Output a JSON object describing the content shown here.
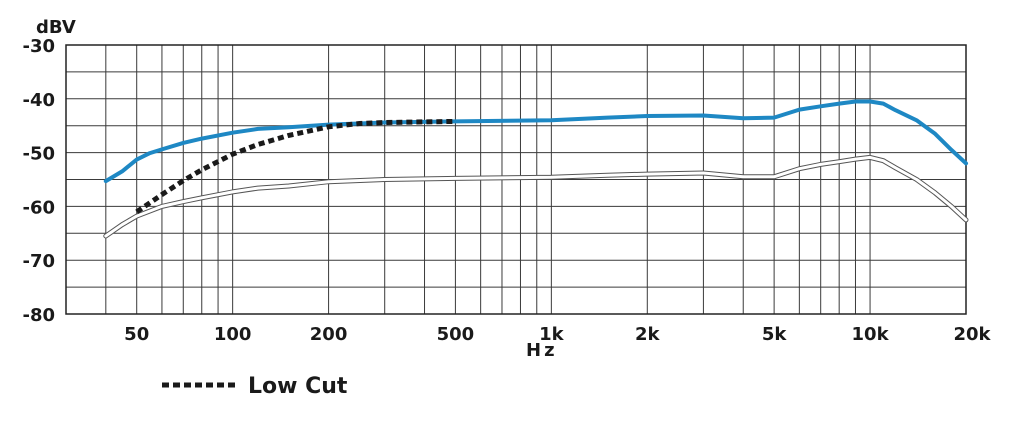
{
  "chart_data": {
    "type": "line",
    "xscale": "log",
    "xlim": [
      30,
      20000
    ],
    "ylim": [
      -80,
      -30
    ],
    "grid": true,
    "xlabel": "Hz",
    "ylabel": "dBV",
    "xticks": [
      {
        "value": 50,
        "label": "50"
      },
      {
        "value": 100,
        "label": "100"
      },
      {
        "value": 200,
        "label": "200"
      },
      {
        "value": 500,
        "label": "500"
      },
      {
        "value": 1000,
        "label": "1k"
      },
      {
        "value": 2000,
        "label": "2k"
      },
      {
        "value": 5000,
        "label": "5k"
      },
      {
        "value": 10000,
        "label": "10k"
      },
      {
        "value": 20000,
        "label": "20k"
      }
    ],
    "yticks": [
      {
        "value": -30,
        "label": "-30"
      },
      {
        "value": -40,
        "label": "-40"
      },
      {
        "value": -50,
        "label": "-50"
      },
      {
        "value": -60,
        "label": "-60"
      },
      {
        "value": -70,
        "label": "-70"
      },
      {
        "value": -80,
        "label": "-80"
      }
    ],
    "legend": {
      "placement": "bottom-left",
      "entries": [
        "Low Cut"
      ]
    },
    "series": [
      {
        "key": "main",
        "style": "solid",
        "color": "#1e88c4",
        "points": [
          [
            40,
            -55.3
          ],
          [
            45,
            -53.5
          ],
          [
            50,
            -51.3
          ],
          [
            55,
            -50.1
          ],
          [
            60,
            -49.4
          ],
          [
            70,
            -48.2
          ],
          [
            80,
            -47.4
          ],
          [
            100,
            -46.3
          ],
          [
            120,
            -45.6
          ],
          [
            150,
            -45.3
          ],
          [
            200,
            -44.8
          ],
          [
            300,
            -44.4
          ],
          [
            500,
            -44.2
          ],
          [
            1000,
            -44.0
          ],
          [
            1500,
            -43.5
          ],
          [
            2000,
            -43.2
          ],
          [
            3000,
            -43.1
          ],
          [
            4000,
            -43.6
          ],
          [
            5000,
            -43.5
          ],
          [
            6000,
            -42.0
          ],
          [
            7000,
            -41.4
          ],
          [
            8000,
            -40.9
          ],
          [
            9000,
            -40.5
          ],
          [
            10000,
            -40.5
          ],
          [
            11000,
            -40.9
          ],
          [
            12000,
            -42.1
          ],
          [
            14000,
            -44.0
          ],
          [
            16000,
            -46.5
          ],
          [
            18000,
            -49.5
          ],
          [
            20000,
            -52.0
          ]
        ]
      },
      {
        "key": "lowcut",
        "name": "Low Cut",
        "style": "dotted",
        "color": "#1a1a1a",
        "points": [
          [
            50,
            -61.0
          ],
          [
            60,
            -57.8
          ],
          [
            70,
            -55.2
          ],
          [
            80,
            -53.2
          ],
          [
            100,
            -50.3
          ],
          [
            120,
            -48.5
          ],
          [
            150,
            -46.8
          ],
          [
            200,
            -45.2
          ],
          [
            250,
            -44.6
          ],
          [
            300,
            -44.4
          ],
          [
            400,
            -44.3
          ],
          [
            500,
            -44.2
          ]
        ]
      },
      {
        "key": "lower",
        "style": "solid",
        "color": "#d4d4d4",
        "points": [
          [
            40,
            -65.5
          ],
          [
            45,
            -63.4
          ],
          [
            50,
            -61.8
          ],
          [
            60,
            -60.0
          ],
          [
            70,
            -59.1
          ],
          [
            80,
            -58.4
          ],
          [
            100,
            -57.3
          ],
          [
            120,
            -56.6
          ],
          [
            150,
            -56.2
          ],
          [
            200,
            -55.4
          ],
          [
            300,
            -55.0
          ],
          [
            500,
            -54.8
          ],
          [
            1000,
            -54.6
          ],
          [
            1500,
            -54.2
          ],
          [
            2000,
            -54.0
          ],
          [
            3000,
            -53.8
          ],
          [
            4000,
            -54.5
          ],
          [
            5000,
            -54.5
          ],
          [
            6000,
            -53.0
          ],
          [
            7000,
            -52.2
          ],
          [
            8000,
            -51.7
          ],
          [
            9000,
            -51.2
          ],
          [
            10000,
            -50.9
          ],
          [
            11000,
            -51.5
          ],
          [
            12000,
            -52.8
          ],
          [
            14000,
            -55.0
          ],
          [
            16000,
            -57.5
          ],
          [
            18000,
            -60.0
          ],
          [
            20000,
            -62.5
          ]
        ]
      }
    ]
  }
}
